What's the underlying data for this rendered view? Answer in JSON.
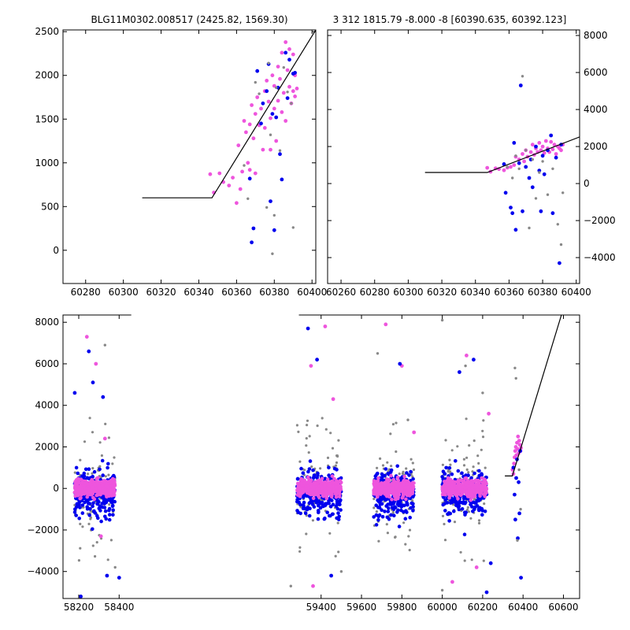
{
  "chart_data": [
    {
      "panel": "top-left",
      "type": "scatter",
      "title": "BLG11M0302.008517 (2425.82, 1569.30)",
      "xlim": [
        60268,
        60402
      ],
      "ylim": [
        -380,
        2520
      ],
      "xticks": [
        60280,
        60300,
        60320,
        60340,
        60360,
        60380,
        60400
      ],
      "yticks": [
        0,
        500,
        1000,
        1500,
        2000,
        2500
      ],
      "ytick_side": "left",
      "model_line": [
        [
          60310,
          600
        ],
        [
          60347,
          600
        ],
        [
          60402,
          2520
        ]
      ],
      "series": [
        {
          "color": "#ee55dd",
          "points": [
            [
              60346,
              870
            ],
            [
              60348,
              660
            ],
            [
              60351,
              880
            ],
            [
              60353,
              780
            ],
            [
              60356,
              740
            ],
            [
              60358,
              830
            ],
            [
              60360,
              540
            ],
            [
              60361,
              1200
            ],
            [
              60362,
              700
            ],
            [
              60363,
              900
            ],
            [
              60364,
              1480
            ],
            [
              60365,
              1350
            ],
            [
              60366,
              1000
            ],
            [
              60367,
              1440
            ],
            [
              60367,
              920
            ],
            [
              60368,
              1660
            ],
            [
              60369,
              1280
            ],
            [
              60370,
              1560
            ],
            [
              60370,
              880
            ],
            [
              60371,
              1750
            ],
            [
              60372,
              1430
            ],
            [
              60373,
              1620
            ],
            [
              60374,
              1150
            ],
            [
              60375,
              1820
            ],
            [
              60375,
              1400
            ],
            [
              60376,
              1940
            ],
            [
              60377,
              1700
            ],
            [
              60378,
              1510
            ],
            [
              60378,
              1150
            ],
            [
              60379,
              2000
            ],
            [
              60380,
              1880
            ],
            [
              60380,
              1620
            ],
            [
              60381,
              1250
            ],
            [
              60382,
              2100
            ],
            [
              60382,
              1710
            ],
            [
              60383,
              1960
            ],
            [
              60384,
              2260
            ],
            [
              60384,
              1580
            ],
            [
              60385,
              1800
            ],
            [
              60386,
              2380
            ],
            [
              60386,
              1480
            ],
            [
              60387,
              2060
            ],
            [
              60388,
              1870
            ],
            [
              60388,
              2300
            ],
            [
              60389,
              1680
            ],
            [
              60390,
              2240
            ],
            [
              60390,
              1820
            ],
            [
              60391,
              1760
            ],
            [
              60391,
              2000
            ],
            [
              60392,
              1850
            ]
          ]
        },
        {
          "color": "#0000ee",
          "points": [
            [
              60367,
              820
            ],
            [
              60368,
              90
            ],
            [
              60369,
              250
            ],
            [
              60371,
              2050
            ],
            [
              60373,
              1450
            ],
            [
              60374,
              1680
            ],
            [
              60376,
              1820
            ],
            [
              60377,
              2130
            ],
            [
              60378,
              560
            ],
            [
              60379,
              1560
            ],
            [
              60380,
              230
            ],
            [
              60381,
              1520
            ],
            [
              60382,
              1860
            ],
            [
              60383,
              1100
            ],
            [
              60384,
              810
            ],
            [
              60386,
              2260
            ],
            [
              60387,
              1740
            ],
            [
              60388,
              2180
            ],
            [
              60390,
              2020
            ],
            [
              60391,
              2030
            ]
          ]
        },
        {
          "color": "#888888",
          "points": [
            [
              60364,
              970
            ],
            [
              60366,
              590
            ],
            [
              60370,
              1920
            ],
            [
              60372,
              1790
            ],
            [
              60376,
              490
            ],
            [
              60377,
              2140
            ],
            [
              60378,
              1320
            ],
            [
              60379,
              -40
            ],
            [
              60380,
              400
            ],
            [
              60381,
              1860
            ],
            [
              60383,
              1140
            ],
            [
              60385,
              2090
            ],
            [
              60387,
              1810
            ],
            [
              60389,
              1680
            ],
            [
              60390,
              260
            ]
          ]
        }
      ]
    },
    {
      "panel": "top-right",
      "type": "scatter",
      "title": "3 312 1815.79 -8.000 -8 [60390.635, 60392.123]",
      "xlim": [
        60252,
        60402
      ],
      "ylim": [
        -5400,
        8300
      ],
      "xticks": [
        60260,
        60280,
        60300,
        60320,
        60340,
        60360,
        60380,
        60400
      ],
      "yticks": [
        -4000,
        -2000,
        0,
        2000,
        4000,
        6000,
        8000
      ],
      "ytick_side": "right",
      "model_line": [
        [
          60310,
          600
        ],
        [
          60347,
          600
        ],
        [
          60402,
          2520
        ]
      ],
      "series": [
        {
          "color": "#ee55dd",
          "points": [
            [
              60347,
              850
            ],
            [
              60349,
              640
            ],
            [
              60352,
              820
            ],
            [
              60354,
              780
            ],
            [
              60357,
              720
            ],
            [
              60359,
              860
            ],
            [
              60361,
              900
            ],
            [
              60363,
              1000
            ],
            [
              60364,
              1450
            ],
            [
              60366,
              1300
            ],
            [
              60368,
              1600
            ],
            [
              60369,
              1200
            ],
            [
              60370,
              1800
            ],
            [
              60371,
              1450
            ],
            [
              60373,
              1700
            ],
            [
              60374,
              2100
            ],
            [
              60375,
              1550
            ],
            [
              60376,
              1900
            ],
            [
              60377,
              1700
            ],
            [
              60378,
              2200
            ],
            [
              60379,
              1800
            ],
            [
              60380,
              2000
            ],
            [
              60381,
              1650
            ],
            [
              60382,
              2300
            ],
            [
              60383,
              1900
            ],
            [
              60384,
              1700
            ],
            [
              60385,
              2250
            ],
            [
              60386,
              1850
            ],
            [
              60387,
              2100
            ],
            [
              60388,
              1600
            ],
            [
              60389,
              2000
            ],
            [
              60390,
              1900
            ],
            [
              60391,
              1800
            ],
            [
              60392,
              2100
            ]
          ]
        },
        {
          "color": "#0000ee",
          "points": [
            [
              60357,
              1050
            ],
            [
              60358,
              -500
            ],
            [
              60361,
              -1300
            ],
            [
              60362,
              -1600
            ],
            [
              60363,
              2200
            ],
            [
              60364,
              -2500
            ],
            [
              60366,
              1100
            ],
            [
              60367,
              5300
            ],
            [
              60368,
              -1500
            ],
            [
              60370,
              900
            ],
            [
              60372,
              300
            ],
            [
              60373,
              1300
            ],
            [
              60374,
              -200
            ],
            [
              60376,
              2000
            ],
            [
              60378,
              700
            ],
            [
              60379,
              -1500
            ],
            [
              60380,
              1500
            ],
            [
              60381,
              500
            ],
            [
              60383,
              1800
            ],
            [
              60385,
              2600
            ],
            [
              60386,
              -1600
            ],
            [
              60388,
              1400
            ],
            [
              60390,
              -4300
            ],
            [
              60391,
              2100
            ]
          ]
        },
        {
          "color": "#888888",
          "points": [
            [
              60359,
              900
            ],
            [
              60362,
              300
            ],
            [
              60364,
              1500
            ],
            [
              60366,
              800
            ],
            [
              60368,
              5800
            ],
            [
              60370,
              1800
            ],
            [
              60372,
              -2400
            ],
            [
              60374,
              1300
            ],
            [
              60376,
              -800
            ],
            [
              60378,
              600
            ],
            [
              60380,
              1200
            ],
            [
              60383,
              -600
            ],
            [
              60386,
              800
            ],
            [
              60389,
              -2200
            ],
            [
              60391,
              -3300
            ],
            [
              60392,
              -500
            ]
          ]
        }
      ]
    },
    {
      "panel": "bottom",
      "type": "scatter",
      "title": "",
      "xlim": [
        58122,
        60680
      ],
      "ylim": [
        -5300,
        8350
      ],
      "xticks": [
        58200,
        58400,
        59400,
        59600,
        59800,
        60000,
        60200,
        60400,
        60600
      ],
      "yticks": [
        -4000,
        -2000,
        0,
        2000,
        4000,
        6000,
        8000
      ],
      "ytick_side": "left",
      "axis_break_x": 58460,
      "axis_break_x2": 59290,
      "model_line": [
        [
          60310,
          600
        ],
        [
          60347,
          600
        ],
        [
          60590,
          8350
        ]
      ],
      "season_scatter": [
        {
          "center": 58280,
          "halfwidth": 100,
          "seed": 11
        },
        {
          "center": 59390,
          "halfwidth": 110,
          "seed": 23
        },
        {
          "center": 59760,
          "halfwidth": 100,
          "seed": 37
        },
        {
          "center": 60110,
          "halfwidth": 110,
          "seed": 51
        }
      ],
      "series": [
        {
          "color": "#ee55dd",
          "points": [
            [
              58240,
              7300
            ],
            [
              58285,
              6000
            ],
            [
              58330,
              2400
            ],
            [
              59350,
              5900
            ],
            [
              59420,
              7800
            ],
            [
              59460,
              4300
            ],
            [
              59720,
              7900
            ],
            [
              59800,
              5900
            ],
            [
              59860,
              2700
            ],
            [
              60120,
              6400
            ],
            [
              60230,
              3600
            ],
            [
              60050,
              -4500
            ],
            [
              60170,
              -3800
            ],
            [
              59360,
              -4700
            ],
            [
              58310,
              -2300
            ],
            [
              60348,
              900
            ],
            [
              60352,
              700
            ],
            [
              60355,
              1200
            ],
            [
              60358,
              1500
            ],
            [
              60361,
              1800
            ],
            [
              60364,
              2000
            ],
            [
              60367,
              1600
            ],
            [
              60370,
              2200
            ],
            [
              60372,
              1900
            ],
            [
              60375,
              2500
            ],
            [
              60378,
              1700
            ],
            [
              60381,
              2300
            ],
            [
              60384,
              2100
            ],
            [
              60387,
              1800
            ],
            [
              60390,
              1950
            ]
          ]
        },
        {
          "color": "#0000ee",
          "points": [
            [
              58180,
              4600
            ],
            [
              58250,
              6600
            ],
            [
              58270,
              5100
            ],
            [
              58320,
              4400
            ],
            [
              58340,
              -4200
            ],
            [
              58400,
              -4300
            ],
            [
              59335,
              7700
            ],
            [
              59380,
              6200
            ],
            [
              59790,
              6000
            ],
            [
              60085,
              5600
            ],
            [
              60155,
              6200
            ],
            [
              60240,
              -3600
            ],
            [
              60220,
              -5000
            ],
            [
              59450,
              -4200
            ],
            [
              58210,
              -5200
            ],
            [
              60352,
              1000
            ],
            [
              60358,
              -300
            ],
            [
              60362,
              -1500
            ],
            [
              60366,
              500
            ],
            [
              60370,
              1400
            ],
            [
              60374,
              -2400
            ],
            [
              60378,
              300
            ],
            [
              60382,
              -1200
            ],
            [
              60386,
              1800
            ],
            [
              60390,
              -4300
            ]
          ]
        },
        {
          "color": "#888888",
          "points": [
            [
              58330,
              6900
            ],
            [
              59500,
              -4000
            ],
            [
              59680,
              6500
            ],
            [
              59830,
              3300
            ],
            [
              60000,
              8100
            ],
            [
              60115,
              5900
            ],
            [
              60200,
              4600
            ],
            [
              59250,
              -4700
            ],
            [
              60000,
              -4900
            ],
            [
              58380,
              -3800
            ],
            [
              60360,
              5800
            ],
            [
              60365,
              5300
            ],
            [
              60372,
              -2500
            ],
            [
              60380,
              900
            ],
            [
              60388,
              -1000
            ]
          ]
        }
      ]
    }
  ]
}
